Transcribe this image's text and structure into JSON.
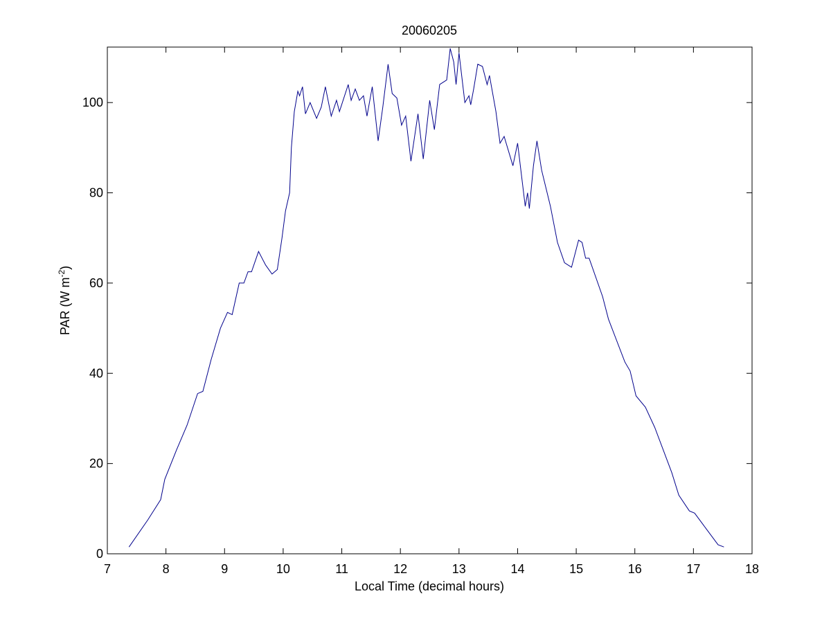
{
  "chart_data": {
    "type": "line",
    "title": "20060205",
    "xlabel": "Local Time (decimal hours)",
    "ylabel": {
      "text": "PAR (W m",
      "superscript": "-2",
      "suffix": ")"
    },
    "xlim": [
      7,
      18
    ],
    "ylim": [
      0,
      112.3
    ],
    "xticks": [
      7,
      8,
      9,
      10,
      11,
      12,
      13,
      14,
      15,
      16,
      17,
      18
    ],
    "yticks": [
      0,
      20,
      40,
      60,
      80,
      100
    ],
    "grid": false,
    "series": [
      {
        "color": "#00008b",
        "x": [
          7.37,
          7.69,
          7.91,
          7.98,
          8.18,
          8.36,
          8.54,
          8.63,
          8.77,
          8.93,
          9.05,
          9.13,
          9.25,
          9.33,
          9.4,
          9.46,
          9.58,
          9.7,
          9.81,
          9.9,
          9.98,
          10.04,
          10.11,
          10.14,
          10.19,
          10.25,
          10.28,
          10.33,
          10.38,
          10.46,
          10.57,
          10.65,
          10.72,
          10.82,
          10.91,
          10.96,
          11.11,
          11.16,
          11.23,
          11.3,
          11.37,
          11.43,
          11.52,
          11.62,
          11.7,
          11.79,
          11.86,
          11.94,
          12.02,
          12.09,
          12.18,
          12.3,
          12.39,
          12.5,
          12.58,
          12.67,
          12.79,
          12.85,
          12.91,
          12.95,
          13.0,
          13.1,
          13.17,
          13.2,
          13.25,
          13.32,
          13.4,
          13.48,
          13.52,
          13.63,
          13.7,
          13.77,
          13.92,
          14.0,
          14.13,
          14.17,
          14.2,
          14.27,
          14.33,
          14.41,
          14.56,
          14.68,
          14.8,
          14.92,
          15.04,
          15.1,
          15.16,
          15.22,
          15.45,
          15.55,
          15.83,
          15.92,
          16.02,
          16.18,
          16.34,
          16.63,
          16.75,
          16.93,
          17.02,
          17.22,
          17.42,
          17.52
        ],
        "values": [
          1.5,
          7.5,
          12,
          16.5,
          23,
          28.5,
          35.5,
          36,
          43,
          50,
          53.5,
          53,
          60,
          60,
          62.5,
          62.5,
          67,
          64,
          62,
          63,
          70,
          76,
          80,
          90,
          98,
          102.5,
          101.5,
          103.5,
          97.5,
          100,
          96.5,
          99,
          103.5,
          97,
          100.5,
          98,
          104,
          100.5,
          103,
          100.5,
          101.5,
          97,
          103.5,
          91.5,
          99,
          108.5,
          102,
          101,
          95,
          97,
          87,
          97.5,
          87.5,
          100.5,
          94,
          104,
          105,
          112,
          109,
          104,
          111,
          100,
          101.5,
          99.5,
          103,
          108.5,
          108,
          104,
          106,
          98,
          91,
          92.5,
          86,
          91,
          77,
          80,
          76.5,
          86,
          91.5,
          85,
          77,
          69,
          64.5,
          63.5,
          69.5,
          69,
          65.5,
          65.5,
          57,
          52,
          42.5,
          40.5,
          35,
          32.5,
          28,
          18,
          13,
          9.5,
          9,
          5.5,
          2,
          1.5
        ]
      }
    ]
  }
}
